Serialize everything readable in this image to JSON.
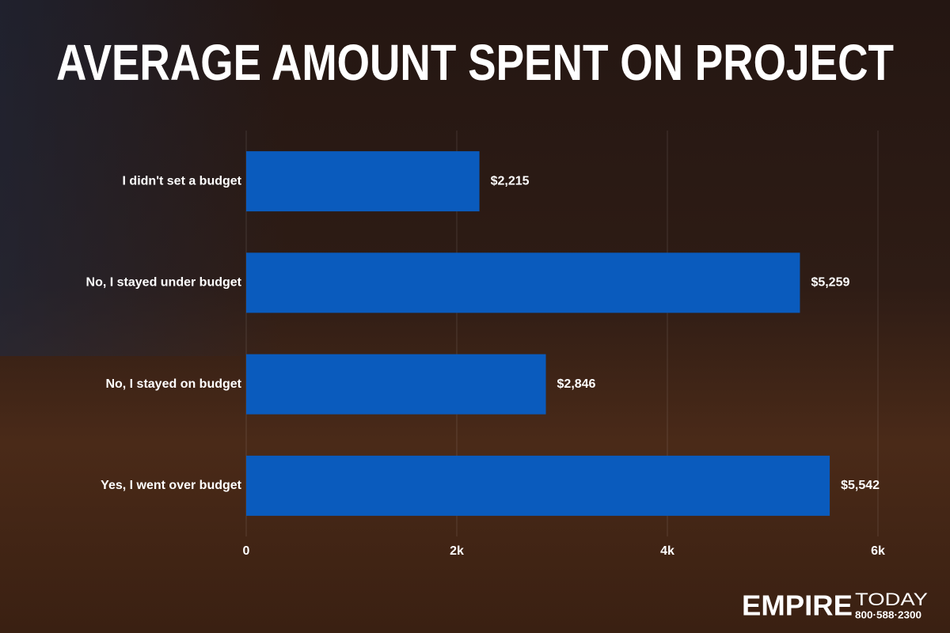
{
  "chart_data": {
    "type": "bar",
    "orientation": "horizontal",
    "title": "AVERAGE AMOUNT SPENT ON PROJECT",
    "categories": [
      "I didn't set a budget",
      "No, I stayed under budget",
      "No, I stayed on budget",
      "Yes, I went over budget"
    ],
    "values": [
      2215,
      5259,
      2846,
      5542
    ],
    "value_labels": [
      "$2,215",
      "$5,259",
      "$2,846",
      "$5,542"
    ],
    "color": "#0a5bbd",
    "xlim": [
      0,
      6000
    ],
    "xticks": [
      0,
      {
        "value": 2000,
        "label": "2k"
      },
      {
        "value": 4000,
        "label": "4k"
      },
      {
        "value": 6000,
        "label": "6k"
      }
    ],
    "grid": true
  },
  "logo": {
    "brand": "EMPIRE",
    "sub": "TODAY",
    "phone": "800·588·2300"
  }
}
